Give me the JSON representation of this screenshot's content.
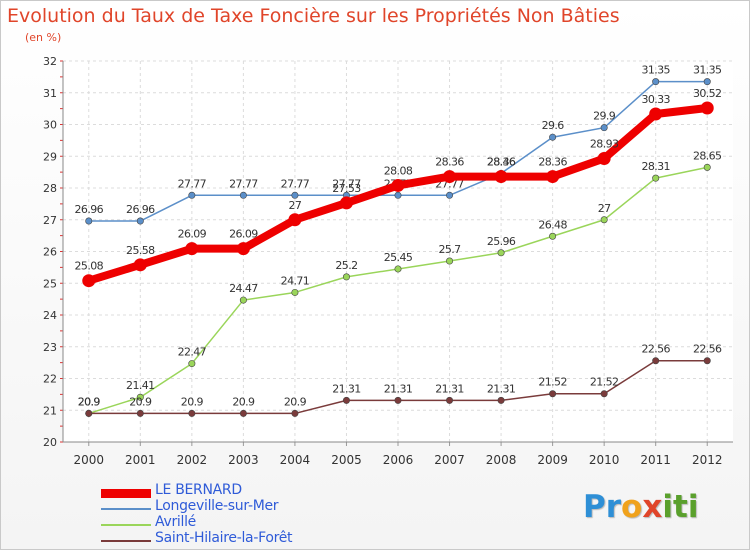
{
  "title": "Evolution du Taux de Taxe Foncière sur les Propriétés Non Bâties",
  "subtitle": "(en %)",
  "logo": {
    "text": "Proxiti",
    "letters": [
      {
        "ch": "P",
        "color": "#2e8fd6"
      },
      {
        "ch": "r",
        "color": "#2e8fd6"
      },
      {
        "ch": "o",
        "color": "#f0a21c"
      },
      {
        "ch": "x",
        "color": "#e0452a"
      },
      {
        "ch": "i",
        "color": "#5aa02c"
      },
      {
        "ch": "t",
        "color": "#5aa02c"
      },
      {
        "ch": "i",
        "color": "#5aa02c"
      }
    ]
  },
  "chart_data": {
    "type": "line",
    "title": "Evolution du Taux de Taxe Foncière sur les Propriétés Non Bâties",
    "ylabel": "(en %)",
    "xlabel": "",
    "x": [
      "2000",
      "2001",
      "2002",
      "2003",
      "2004",
      "2005",
      "2006",
      "2007",
      "2008",
      "2009",
      "2010",
      "2011",
      "2012"
    ],
    "ylim": [
      20,
      32
    ],
    "yticks": [
      20,
      21,
      22,
      23,
      24,
      25,
      26,
      27,
      28,
      29,
      30,
      31,
      32
    ],
    "grid": true,
    "legend_position": "bottom-left",
    "series": [
      {
        "name": "Longeville-sur-Mer",
        "color": "#5b8fc9",
        "values": [
          26.96,
          26.96,
          27.77,
          27.77,
          27.77,
          27.77,
          27.77,
          27.77,
          28.46,
          29.6,
          29.9,
          31.35,
          31.35
        ],
        "labels": [
          "26.96",
          "26.96",
          "27.77",
          "27.77",
          "27.77",
          "27.77",
          "27.77",
          "27.77",
          "28.46",
          "29.6",
          "29.9",
          "31.35",
          "31.35"
        ]
      },
      {
        "name": "Avrillé",
        "color": "#9ad55a",
        "values": [
          20.9,
          21.41,
          22.47,
          24.47,
          24.71,
          25.2,
          25.45,
          25.7,
          25.96,
          26.48,
          27,
          28.31,
          28.65
        ],
        "labels": [
          "20.9",
          "21.41",
          "22.47",
          "24.47",
          "24.71",
          "25.2",
          "25.45",
          "25.7",
          "25.96",
          "26.48",
          "27",
          "28.31",
          "28.65"
        ]
      },
      {
        "name": "Saint-Hilaire-la-Forêt",
        "color": "#7a3b3b",
        "values": [
          20.9,
          20.9,
          20.9,
          20.9,
          20.9,
          21.31,
          21.31,
          21.31,
          21.31,
          21.52,
          21.52,
          22.56,
          22.56
        ],
        "labels": [
          "20.9",
          "20.9",
          "20.9",
          "20.9",
          "20.9",
          "21.31",
          "21.31",
          "21.31",
          "21.31",
          "21.52",
          "21.52",
          "22.56",
          "22.56"
        ]
      },
      {
        "name": "LE BERNARD",
        "color": "#ee0000",
        "values": [
          25.08,
          25.58,
          26.09,
          26.09,
          27,
          27.53,
          28.08,
          28.36,
          28.36,
          28.36,
          28.93,
          30.33,
          30.52
        ],
        "labels": [
          "25.08",
          "25.58",
          "26.09",
          "26.09",
          "27",
          "27.53",
          "28.08",
          "28.36",
          "28.36",
          "28.36",
          "28.93",
          "30.33",
          "30.52"
        ]
      }
    ],
    "legend": [
      "LE BERNARD",
      "Longeville-sur-Mer",
      "Avrillé",
      "Saint-Hilaire-la-Forêt"
    ]
  }
}
